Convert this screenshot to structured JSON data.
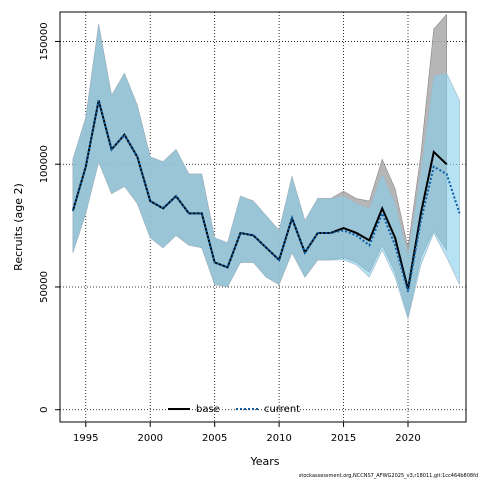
{
  "chart_data": {
    "type": "area",
    "xlabel": "Years",
    "ylabel": "Recruits (age 2)",
    "xlim": [
      1993.0,
      2024.5
    ],
    "ylim": [
      -5000,
      162000
    ],
    "xticks": [
      1995,
      2000,
      2005,
      2010,
      2015,
      2020
    ],
    "yticks": [
      0,
      50000,
      100000,
      150000
    ],
    "grid": true,
    "legend_position": "bottom-center",
    "x": [
      1994,
      1995,
      1996,
      1997,
      1998,
      1999,
      2000,
      2001,
      2002,
      2003,
      2004,
      2005,
      2006,
      2007,
      2008,
      2009,
      2010,
      2011,
      2012,
      2013,
      2014,
      2015,
      2016,
      2017,
      2018,
      2019,
      2020,
      2021,
      2022,
      2023,
      2024
    ],
    "series": [
      {
        "name": "base",
        "color": "#000000",
        "linestyle": "solid",
        "band_color": "#a9a9a9",
        "values": [
          81000,
          99000,
          126000,
          106000,
          112000,
          103000,
          85000,
          82000,
          87000,
          80000,
          80000,
          60000,
          58000,
          72000,
          71000,
          66000,
          61000,
          78000,
          64000,
          72000,
          72000,
          74000,
          72000,
          69000,
          82000,
          70000,
          49000,
          80000,
          105000,
          100000,
          null
        ],
        "lower": [
          64000,
          80000,
          101000,
          88000,
          91000,
          84000,
          70000,
          66000,
          71000,
          67000,
          66000,
          51000,
          50000,
          60000,
          60000,
          54000,
          51000,
          64000,
          54000,
          61000,
          61000,
          62000,
          60000,
          56000,
          67000,
          56000,
          38000,
          62000,
          73000,
          65000,
          null
        ],
        "upper": [
          102000,
          119000,
          157000,
          128000,
          137000,
          124000,
          103000,
          101000,
          106000,
          96000,
          96000,
          70000,
          68000,
          87000,
          85000,
          79000,
          73000,
          95000,
          77000,
          86000,
          86000,
          89000,
          86000,
          85000,
          102000,
          90000,
          66000,
          104000,
          155000,
          161000,
          null
        ]
      },
      {
        "name": "current",
        "color": "#0b5ea5",
        "linestyle": "dotted",
        "band_color": "#87ceeb",
        "values": [
          81000,
          99000,
          126000,
          106000,
          112000,
          103000,
          85000,
          82000,
          87000,
          80000,
          80000,
          60000,
          58000,
          72000,
          71000,
          66000,
          61000,
          78000,
          64000,
          72000,
          72000,
          73000,
          71000,
          67000,
          80000,
          67000,
          48000,
          77000,
          99000,
          96000,
          80000
        ],
        "lower": [
          64000,
          80000,
          101000,
          88000,
          91000,
          84000,
          70000,
          66000,
          71000,
          67000,
          66000,
          51000,
          50000,
          60000,
          60000,
          54000,
          51000,
          64000,
          54000,
          61000,
          61000,
          61000,
          59000,
          54000,
          65000,
          54000,
          37000,
          59000,
          72000,
          62000,
          51000
        ],
        "upper": [
          102000,
          119000,
          157000,
          128000,
          137000,
          124000,
          103000,
          101000,
          106000,
          96000,
          96000,
          70000,
          68000,
          87000,
          85000,
          79000,
          73000,
          95000,
          77000,
          86000,
          86000,
          87000,
          84000,
          82000,
          96000,
          84000,
          63000,
          97000,
          136000,
          137000,
          126000
        ]
      }
    ]
  },
  "legend": {
    "base_label": "base",
    "current_label": "current"
  },
  "footer_text": "stockassessment.org,NCCNS7_AFWG2025_v3,r18011,git:1cc464b808fd"
}
